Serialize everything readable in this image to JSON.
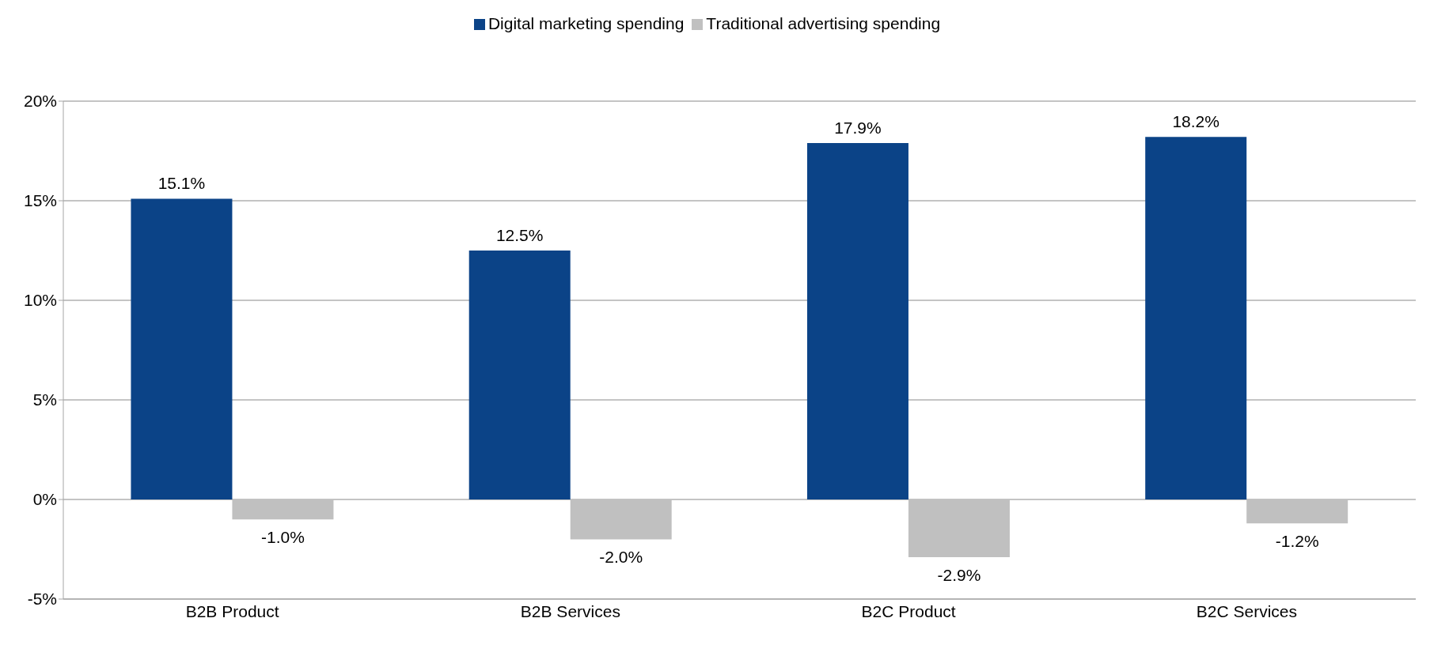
{
  "chart_data": {
    "type": "bar",
    "categories": [
      "B2B Product",
      "B2B Services",
      "B2C Product",
      "B2C Services"
    ],
    "series": [
      {
        "name": "Digital marketing spending",
        "color": "#0b4387",
        "values": [
          15.1,
          12.5,
          17.9,
          18.2
        ],
        "value_labels": [
          "15.1%",
          "12.5%",
          "17.9%",
          "18.2%"
        ]
      },
      {
        "name": "Traditional advertising spending",
        "color": "#c0c0c0",
        "values": [
          -1.0,
          -2.0,
          -2.9,
          -1.2
        ],
        "value_labels": [
          "-1.0%",
          "-2.0%",
          "-2.9%",
          "-1.2%"
        ]
      }
    ],
    "ylim": [
      -5,
      20
    ],
    "yticks": [
      {
        "value": -5,
        "label": "-5%"
      },
      {
        "value": 0,
        "label": "0%"
      },
      {
        "value": 5,
        "label": "5%"
      },
      {
        "value": 10,
        "label": "10%"
      },
      {
        "value": 15,
        "label": "15%"
      },
      {
        "value": 20,
        "label": "20%"
      }
    ],
    "grid": "y",
    "legend": "top"
  }
}
